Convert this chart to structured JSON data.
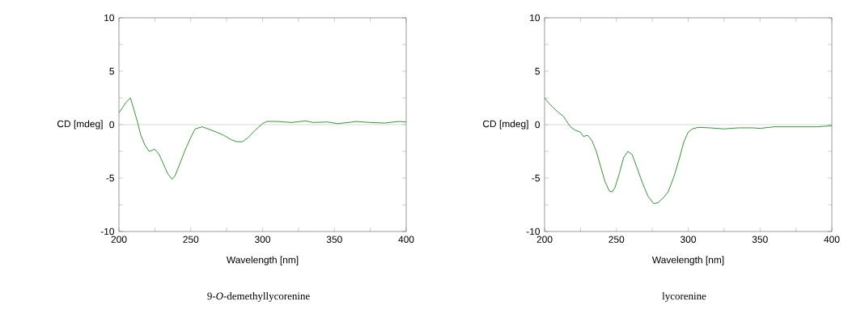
{
  "chart_data": [
    {
      "type": "line",
      "title": "9-*O*-demethyllycorenine",
      "xlabel": "Wavelength [nm]",
      "ylabel": "CD [mdeg]",
      "xlim": [
        200,
        400
      ],
      "ylim": [
        -10,
        10
      ],
      "xticks": [
        200,
        {
          "value": 225,
          "label": null
        },
        250,
        {
          "value": 275,
          "label": null
        },
        300,
        {
          "value": 325,
          "label": null
        },
        350,
        {
          "value": 375,
          "label": null
        },
        400
      ],
      "yticks": [
        -10,
        {
          "value": -7.5,
          "label": null
        },
        -5,
        {
          "value": -2.5,
          "label": null
        },
        0,
        {
          "value": 2.5,
          "label": null
        },
        5,
        {
          "value": 7.5,
          "label": null
        },
        10
      ],
      "ref_lines": [
        {
          "axis": "y",
          "value": 0,
          "color": "#c0c0c0"
        }
      ],
      "series": [
        {
          "color": "#1a8c1a",
          "x": [
            200,
            203,
            205,
            208,
            210,
            213,
            215,
            218,
            221,
            223,
            225,
            228,
            231,
            234,
            237,
            239,
            242,
            246,
            250,
            253,
            258,
            262,
            268,
            273,
            278,
            282,
            286,
            290,
            295,
            300,
            303,
            310,
            320,
            330,
            335,
            345,
            352,
            360,
            365,
            375,
            385,
            395,
            400
          ],
          "values": [
            1.1,
            1.7,
            2.1,
            2.5,
            1.6,
            0.2,
            -0.9,
            -1.9,
            -2.5,
            -2.4,
            -2.3,
            -2.8,
            -3.7,
            -4.6,
            -5.1,
            -4.8,
            -3.8,
            -2.4,
            -1.2,
            -0.4,
            -0.2,
            -0.4,
            -0.7,
            -1.0,
            -1.4,
            -1.6,
            -1.6,
            -1.2,
            -0.5,
            0.1,
            0.3,
            0.3,
            0.2,
            0.35,
            0.2,
            0.25,
            0.1,
            0.2,
            0.3,
            0.2,
            0.15,
            0.3,
            0.25
          ]
        }
      ]
    },
    {
      "type": "line",
      "title": "lycorenine",
      "xlabel": "Wavelength [nm]",
      "ylabel": "CD [mdeg]",
      "xlim": [
        200,
        400
      ],
      "ylim": [
        -10,
        10
      ],
      "xticks": [
        200,
        {
          "value": 225,
          "label": null
        },
        250,
        {
          "value": 275,
          "label": null
        },
        300,
        {
          "value": 325,
          "label": null
        },
        350,
        {
          "value": 375,
          "label": null
        },
        400
      ],
      "yticks": [
        -10,
        {
          "value": -7.5,
          "label": null
        },
        -5,
        {
          "value": -2.5,
          "label": null
        },
        0,
        {
          "value": 2.5,
          "label": null
        },
        5,
        {
          "value": 7.5,
          "label": null
        },
        10
      ],
      "ref_lines": [
        {
          "axis": "y",
          "value": 0,
          "color": "#c0c0c0"
        }
      ],
      "series": [
        {
          "color": "#1a8c1a",
          "x": [
            200,
            203,
            206,
            210,
            213,
            215,
            218,
            221,
            225,
            227,
            230,
            233,
            236,
            239,
            242,
            245,
            247,
            249,
            252,
            255,
            258,
            261,
            264,
            268,
            272,
            276,
            279,
            283,
            286,
            290,
            294,
            297,
            300,
            303,
            307,
            315,
            325,
            335,
            345,
            350,
            360,
            370,
            380,
            390,
            400
          ],
          "values": [
            2.5,
            2.0,
            1.6,
            1.1,
            0.8,
            0.4,
            -0.2,
            -0.5,
            -0.7,
            -1.1,
            -1.0,
            -1.5,
            -2.5,
            -3.9,
            -5.3,
            -6.2,
            -6.3,
            -5.9,
            -4.6,
            -3.1,
            -2.5,
            -2.8,
            -3.9,
            -5.4,
            -6.7,
            -7.4,
            -7.3,
            -6.8,
            -6.3,
            -4.9,
            -3.1,
            -1.6,
            -0.7,
            -0.4,
            -0.25,
            -0.3,
            -0.4,
            -0.3,
            -0.3,
            -0.35,
            -0.2,
            -0.2,
            -0.2,
            -0.2,
            -0.1
          ]
        }
      ]
    }
  ]
}
